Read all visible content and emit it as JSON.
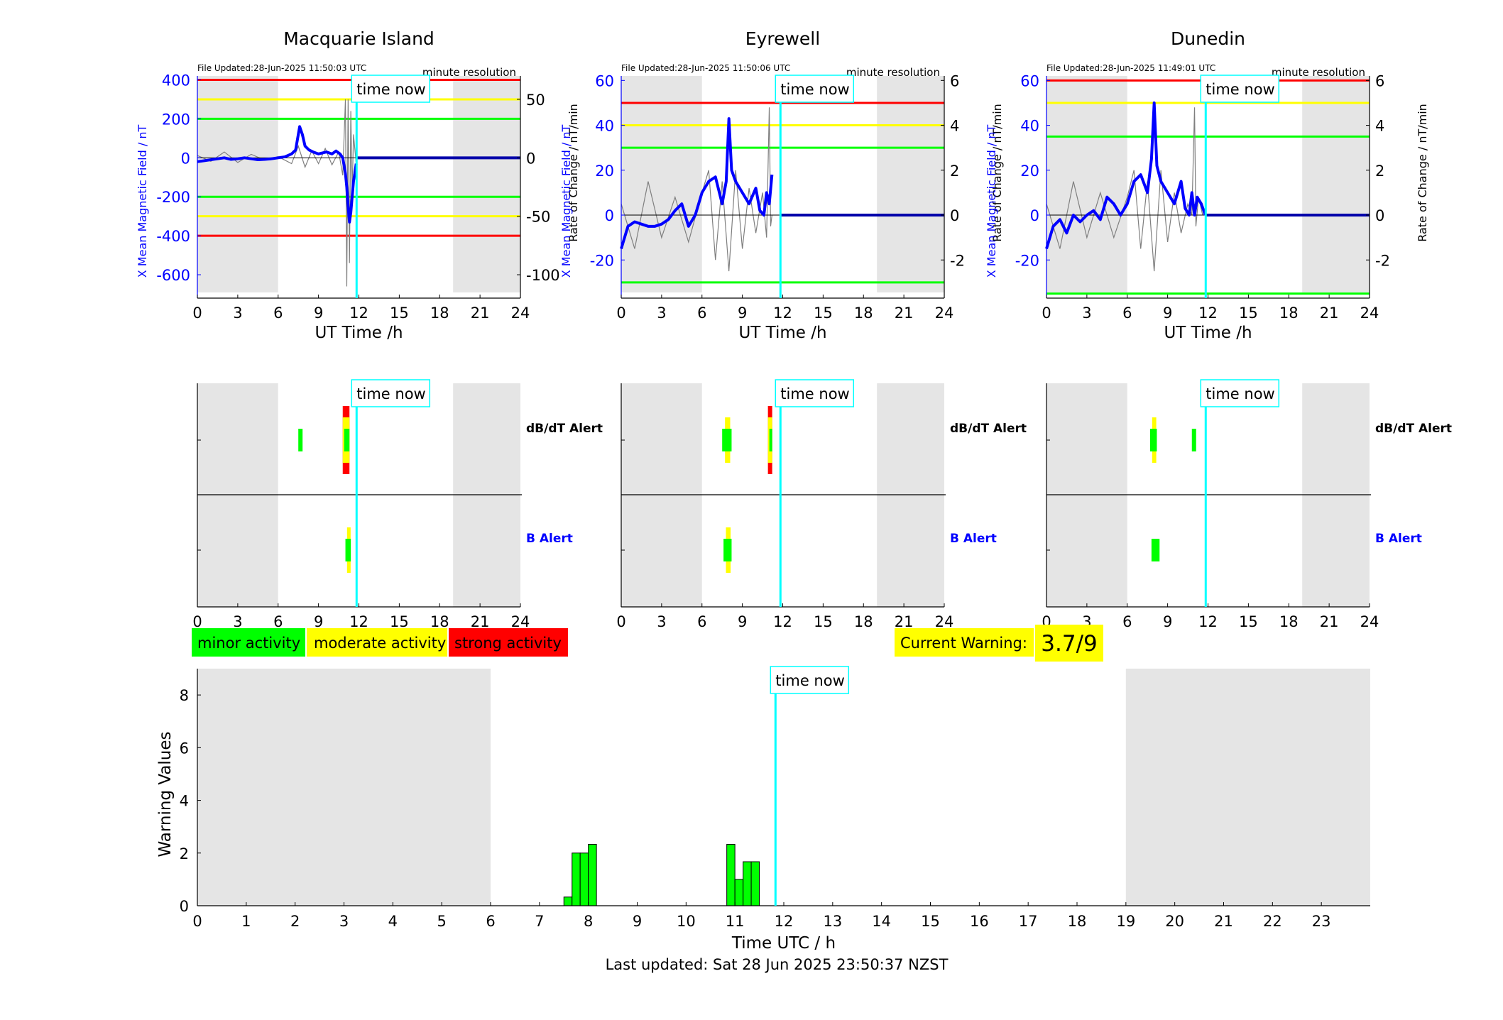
{
  "colors": {
    "night_shade": "#e5e5e5",
    "field_line": "#0000ff",
    "rate_line": "#7f7f7f",
    "now_line": "#00ffff",
    "minor": "#00ff00",
    "moderate": "#ffff00",
    "strong": "#ff0000",
    "left_axis": "#0000ff",
    "b_alert_label": "#0000ff"
  },
  "common": {
    "time_now_label": "time now",
    "resolution_label": "minute resolution",
    "x_axis_label": "UT Time /h",
    "left_axis_label": "X Mean Magnetic Field / nT",
    "right_axis_label": "Rate of Change / nT/min",
    "dbdt_alert_label": "dB/dT Alert",
    "b_alert_label": "B Alert",
    "night_periods_h": [
      [
        0,
        6
      ],
      [
        19,
        24
      ]
    ],
    "time_now_h": 11.83,
    "x_ticks": [
      0,
      3,
      6,
      9,
      12,
      15,
      18,
      21,
      24
    ]
  },
  "legend": {
    "minor": "minor activity",
    "moderate": "moderate activity",
    "strong": "strong activity"
  },
  "current_warning": {
    "label": "Current Warning:",
    "value": "3.7/9"
  },
  "footer": {
    "last_updated": "Last updated: Sat 28 Jun 2025 23:50:37 NZST"
  },
  "chart_data": [
    {
      "type": "line",
      "title": "Macquarie Island",
      "file_updated": "File Updated:28-Jun-2025 11:50:03 UTC",
      "xlim": [
        0,
        24
      ],
      "ylim_left": [
        -720,
        420
      ],
      "ylim_right": [
        -120,
        70
      ],
      "y_ticks_left": [
        400,
        200,
        0,
        -200,
        -400,
        -600
      ],
      "y_ticks_right": [
        50,
        0,
        -50,
        -100
      ],
      "thresholds_nT": [
        {
          "level": "strong",
          "values": [
            400,
            -400
          ]
        },
        {
          "level": "moderate",
          "values": [
            300,
            -300
          ]
        },
        {
          "level": "minor",
          "values": [
            200,
            -200
          ]
        }
      ],
      "field_series": {
        "name": "X Mean Magnetic Field",
        "x": [
          0,
          0.5,
          1,
          1.5,
          2,
          2.5,
          3,
          3.5,
          4,
          4.5,
          5,
          5.5,
          6,
          6.5,
          7,
          7.3,
          7.6,
          7.8,
          8,
          8.3,
          8.6,
          9,
          9.3,
          9.6,
          10,
          10.3,
          10.6,
          10.8,
          11,
          11.1,
          11.2,
          11.3,
          11.4,
          11.5,
          11.6,
          11.7,
          11.8
        ],
        "y": [
          -20,
          -15,
          -10,
          -5,
          0,
          -8,
          -5,
          0,
          -5,
          -10,
          -8,
          -5,
          0,
          5,
          20,
          40,
          160,
          120,
          60,
          40,
          30,
          20,
          25,
          30,
          20,
          35,
          20,
          0,
          -80,
          -150,
          -250,
          -330,
          -280,
          -200,
          -120,
          -80,
          -30
        ]
      },
      "rate_series": {
        "name": "Rate of Change",
        "x": [
          0,
          1,
          2,
          3,
          4,
          5,
          6,
          7,
          7.5,
          8,
          8.5,
          9,
          9.5,
          10,
          10.5,
          10.8,
          11,
          11.1,
          11.2,
          11.3,
          11.4,
          11.5,
          11.6,
          11.8
        ],
        "y": [
          2,
          -3,
          5,
          -4,
          3,
          -2,
          1,
          -5,
          10,
          -8,
          6,
          -5,
          8,
          -6,
          5,
          -15,
          50,
          -110,
          50,
          -90,
          40,
          -30,
          20,
          -5
        ]
      },
      "post_now_field_value": 0,
      "dbdt_alerts": [
        {
          "start": 7.5,
          "end": 7.8,
          "level": "minor"
        },
        {
          "start": 10.8,
          "end": 11.3,
          "level": "strong"
        }
      ],
      "b_alerts": [
        {
          "start": 11.0,
          "end": 11.4,
          "level": "moderate"
        }
      ]
    },
    {
      "type": "line",
      "title": "Eyrewell",
      "file_updated": "File Updated:28-Jun-2025 11:50:06 UTC",
      "xlim": [
        0,
        24
      ],
      "ylim_left": [
        -37,
        62
      ],
      "ylim_right": [
        -3.7,
        6.2
      ],
      "y_ticks_left": [
        60,
        40,
        20,
        0,
        -20
      ],
      "y_ticks_right": [
        6,
        4,
        2,
        0,
        -2
      ],
      "thresholds_nT": [
        {
          "level": "strong",
          "values": [
            50
          ]
        },
        {
          "level": "moderate",
          "values": [
            40
          ]
        },
        {
          "level": "minor",
          "values": [
            30,
            -30
          ]
        }
      ],
      "field_series": {
        "name": "X Mean Magnetic Field",
        "x": [
          0,
          0.5,
          1,
          1.5,
          2,
          2.5,
          3,
          3.5,
          4,
          4.5,
          5,
          5.5,
          6,
          6.5,
          7,
          7.5,
          7.8,
          8,
          8.2,
          8.5,
          9,
          9.5,
          10,
          10.3,
          10.6,
          10.8,
          11,
          11.2
        ],
        "y": [
          -15,
          -5,
          -3,
          -4,
          -5,
          -5,
          -4,
          -2,
          2,
          5,
          -5,
          0,
          10,
          15,
          17,
          5,
          15,
          43,
          20,
          15,
          10,
          5,
          12,
          2,
          0,
          10,
          5,
          18
        ]
      },
      "rate_series": {
        "name": "Rate of Change",
        "x": [
          0,
          1,
          2,
          3,
          4,
          5,
          6,
          6.5,
          7,
          7.5,
          8,
          8.5,
          9,
          9.5,
          10,
          10.5,
          10.8,
          11,
          11.1,
          11.2
        ],
        "y": [
          0.5,
          -1.5,
          1.5,
          -1,
          0.8,
          -1.2,
          1,
          2,
          -2,
          1.5,
          -2.5,
          2,
          -1.5,
          1.2,
          -0.8,
          1,
          -1,
          4.8,
          -0.5,
          0
        ]
      },
      "post_now_field_value": 0,
      "dbdt_alerts": [
        {
          "start": 7.5,
          "end": 8.2,
          "level": "moderate"
        },
        {
          "start": 10.9,
          "end": 11.2,
          "level": "strong"
        }
      ],
      "b_alerts": [
        {
          "start": 7.6,
          "end": 8.2,
          "level": "moderate"
        }
      ]
    },
    {
      "type": "line",
      "title": "Dunedin",
      "file_updated": "File Updated:28-Jun-2025 11:49:01 UTC",
      "xlim": [
        0,
        24
      ],
      "ylim_left": [
        -37,
        62
      ],
      "ylim_right": [
        -3.7,
        6.2
      ],
      "y_ticks_left": [
        60,
        40,
        20,
        0,
        -20
      ],
      "y_ticks_right": [
        6,
        4,
        2,
        0,
        -2
      ],
      "thresholds_nT": [
        {
          "level": "strong",
          "values": [
            60
          ]
        },
        {
          "level": "moderate",
          "values": [
            50
          ]
        },
        {
          "level": "minor",
          "values": [
            35,
            -35
          ]
        }
      ],
      "field_series": {
        "name": "X Mean Magnetic Field",
        "x": [
          0,
          0.5,
          1,
          1.5,
          2,
          2.5,
          3,
          3.5,
          4,
          4.5,
          5,
          5.5,
          6,
          6.5,
          7,
          7.5,
          7.8,
          8,
          8.2,
          8.5,
          9,
          9.5,
          10,
          10.3,
          10.6,
          10.8,
          11,
          11.2,
          11.5,
          11.8
        ],
        "y": [
          -15,
          -5,
          -2,
          -8,
          0,
          -3,
          0,
          2,
          -2,
          8,
          5,
          0,
          5,
          15,
          18,
          10,
          25,
          50,
          22,
          15,
          10,
          5,
          15,
          3,
          0,
          10,
          0,
          8,
          5,
          0
        ]
      },
      "rate_series": {
        "name": "Rate of Change",
        "x": [
          0,
          1,
          2,
          3,
          4,
          5,
          6,
          6.5,
          7,
          7.5,
          8,
          8.5,
          9,
          9.5,
          10,
          10.5,
          10.8,
          11,
          11.1,
          11.3,
          11.6
        ],
        "y": [
          0.5,
          -1.5,
          1.5,
          -1,
          1,
          -1,
          0.8,
          2,
          -1.5,
          1.5,
          -2.5,
          2,
          -1.2,
          1,
          -0.8,
          0.5,
          0,
          4.8,
          -0.5,
          0.8,
          0
        ]
      },
      "post_now_field_value": 0,
      "dbdt_alerts": [
        {
          "start": 7.7,
          "end": 8.2,
          "level": "moderate"
        },
        {
          "start": 10.8,
          "end": 11.1,
          "level": "minor"
        }
      ],
      "b_alerts": [
        {
          "start": 7.8,
          "end": 8.4,
          "level": "minor"
        }
      ]
    },
    {
      "type": "bar",
      "xlabel": "Time UTC / h",
      "ylabel": "Warning Values",
      "xlim": [
        0,
        24
      ],
      "ylim": [
        0,
        9
      ],
      "x_ticks": [
        0,
        1,
        2,
        3,
        4,
        5,
        6,
        7,
        8,
        9,
        10,
        11,
        12,
        13,
        14,
        15,
        16,
        17,
        18,
        19,
        20,
        21,
        22,
        23
      ],
      "y_ticks": [
        0,
        2,
        4,
        6,
        8
      ],
      "bar_width_h": 0.1667,
      "bars": [
        {
          "x": 7.5,
          "value": 0.33
        },
        {
          "x": 7.667,
          "value": 2.0
        },
        {
          "x": 7.833,
          "value": 2.0
        },
        {
          "x": 8.0,
          "value": 2.33
        },
        {
          "x": 10.833,
          "value": 2.33
        },
        {
          "x": 11.0,
          "value": 1.0
        },
        {
          "x": 11.167,
          "value": 1.67
        },
        {
          "x": 11.333,
          "value": 1.67
        }
      ]
    }
  ]
}
